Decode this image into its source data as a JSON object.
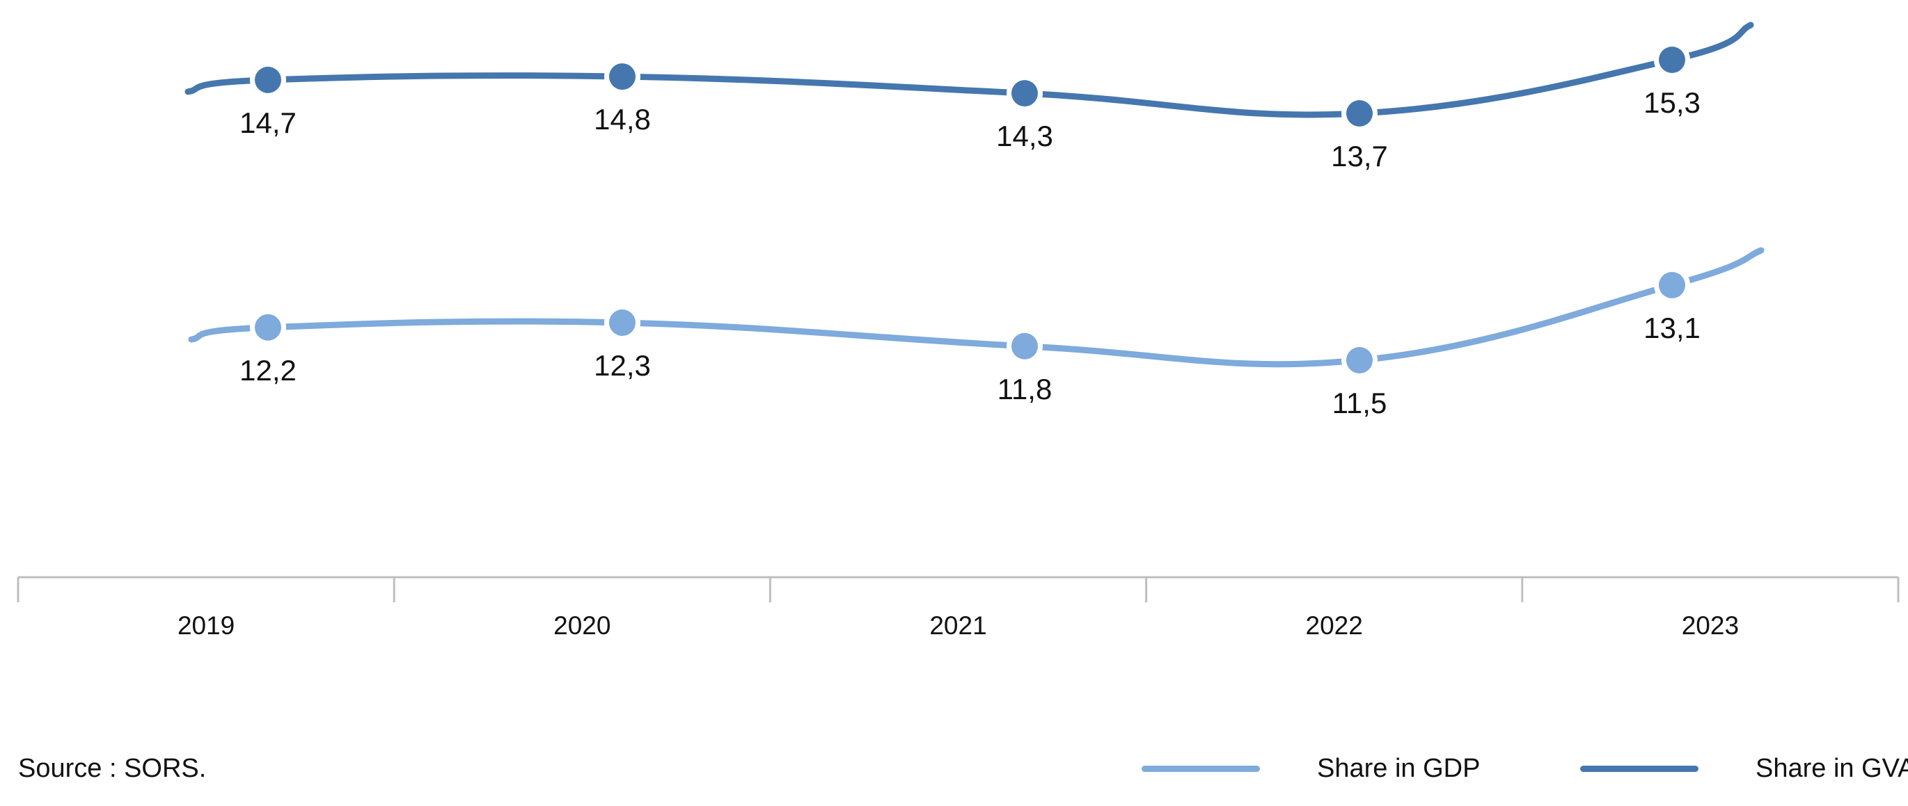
{
  "chart_data": {
    "type": "line",
    "categories": [
      "2019",
      "2020",
      "2021",
      "2022",
      "2023"
    ],
    "series": [
      {
        "name": "Share in GDP",
        "values": [
          12.2,
          12.3,
          11.8,
          11.5,
          13.1
        ],
        "labels": [
          "12,2",
          "12,3",
          "11,8",
          "11,5",
          "13,1"
        ],
        "color": "#7eaadc"
      },
      {
        "name": "Share in GVA",
        "values": [
          14.7,
          14.8,
          14.3,
          13.7,
          15.3
        ],
        "labels": [
          "14,7",
          "14,8",
          "14,3",
          "13,7",
          "15,3"
        ],
        "color": "#4577ae"
      }
    ],
    "legend_position": "bottom-right",
    "grid": false,
    "axis_color": "#bfbfbf"
  },
  "footer": {
    "source": "Source : SORS."
  }
}
